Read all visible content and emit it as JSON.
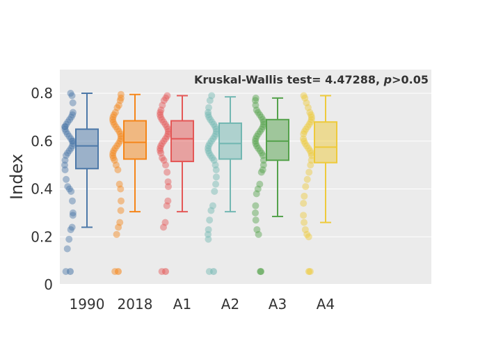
{
  "chart_data": {
    "type": "box",
    "title": "",
    "xlabel": "",
    "ylabel": "Index",
    "ylim": [
      0,
      0.9
    ],
    "yticks": [
      "0",
      "0.2",
      "0.4",
      "0.6",
      "0.8"
    ],
    "grid": true,
    "legend": "none",
    "annotation": {
      "prefix": "Kruskal-Wallis test= 4.47288, ",
      "p_symbol": "p",
      "suffix": ">0.05"
    },
    "categories": [
      "1990",
      "2018",
      "A1",
      "A2",
      "A3",
      "A4"
    ],
    "series": [
      {
        "color": "#4C78A8",
        "min": 0.24,
        "q1": 0.485,
        "median": 0.58,
        "q3": 0.65,
        "max": 0.8,
        "outliers": [
          0.055
        ],
        "points": [
          0.8,
          0.79,
          0.76,
          0.72,
          0.71,
          0.7,
          0.69,
          0.68,
          0.67,
          0.66,
          0.66,
          0.65,
          0.64,
          0.63,
          0.62,
          0.61,
          0.6,
          0.6,
          0.59,
          0.58,
          0.57,
          0.56,
          0.55,
          0.54,
          0.52,
          0.5,
          0.48,
          0.44,
          0.41,
          0.4,
          0.39,
          0.35,
          0.3,
          0.29,
          0.24,
          0.23,
          0.19,
          0.15,
          0.055
        ]
      },
      {
        "color": "#F58518",
        "min": 0.305,
        "q1": 0.525,
        "median": 0.595,
        "q3": 0.685,
        "max": 0.795,
        "outliers": [
          0.055
        ],
        "points": [
          0.795,
          0.78,
          0.77,
          0.75,
          0.74,
          0.72,
          0.71,
          0.7,
          0.69,
          0.68,
          0.67,
          0.66,
          0.65,
          0.64,
          0.63,
          0.62,
          0.61,
          0.6,
          0.59,
          0.58,
          0.57,
          0.56,
          0.55,
          0.54,
          0.53,
          0.52,
          0.5,
          0.48,
          0.42,
          0.4,
          0.35,
          0.31,
          0.26,
          0.24,
          0.21,
          0.055
        ]
      },
      {
        "color": "#E45756",
        "min": 0.305,
        "q1": 0.515,
        "median": 0.61,
        "q3": 0.685,
        "max": 0.79,
        "outliers": [
          0.055
        ],
        "points": [
          0.79,
          0.78,
          0.77,
          0.75,
          0.73,
          0.72,
          0.71,
          0.7,
          0.69,
          0.68,
          0.67,
          0.66,
          0.65,
          0.64,
          0.63,
          0.62,
          0.61,
          0.6,
          0.59,
          0.58,
          0.57,
          0.56,
          0.55,
          0.53,
          0.52,
          0.5,
          0.47,
          0.43,
          0.41,
          0.35,
          0.33,
          0.26,
          0.24,
          0.055
        ]
      },
      {
        "color": "#72B7B2",
        "min": 0.305,
        "q1": 0.525,
        "median": 0.59,
        "q3": 0.675,
        "max": 0.785,
        "outliers": [
          0.055
        ],
        "points": [
          0.79,
          0.77,
          0.74,
          0.72,
          0.71,
          0.7,
          0.69,
          0.68,
          0.67,
          0.66,
          0.65,
          0.64,
          0.63,
          0.62,
          0.61,
          0.6,
          0.59,
          0.58,
          0.57,
          0.56,
          0.55,
          0.54,
          0.53,
          0.52,
          0.5,
          0.48,
          0.45,
          0.42,
          0.39,
          0.33,
          0.31,
          0.27,
          0.23,
          0.21,
          0.19,
          0.055
        ]
      },
      {
        "color": "#54A24B",
        "min": 0.285,
        "q1": 0.52,
        "median": 0.6,
        "q3": 0.69,
        "max": 0.78,
        "outliers": [
          0.055
        ],
        "points": [
          0.78,
          0.77,
          0.75,
          0.73,
          0.72,
          0.71,
          0.7,
          0.69,
          0.68,
          0.67,
          0.66,
          0.65,
          0.64,
          0.63,
          0.62,
          0.61,
          0.6,
          0.59,
          0.58,
          0.57,
          0.56,
          0.55,
          0.54,
          0.52,
          0.5,
          0.48,
          0.47,
          0.42,
          0.4,
          0.38,
          0.33,
          0.3,
          0.27,
          0.23,
          0.21,
          0.055
        ]
      },
      {
        "color": "#EECA3B",
        "min": 0.26,
        "q1": 0.51,
        "median": 0.575,
        "q3": 0.68,
        "max": 0.79,
        "outliers": [
          0.055
        ],
        "points": [
          0.79,
          0.78,
          0.76,
          0.74,
          0.72,
          0.71,
          0.7,
          0.69,
          0.68,
          0.67,
          0.66,
          0.65,
          0.64,
          0.63,
          0.61,
          0.6,
          0.59,
          0.58,
          0.57,
          0.56,
          0.55,
          0.54,
          0.52,
          0.5,
          0.47,
          0.44,
          0.41,
          0.37,
          0.34,
          0.29,
          0.26,
          0.23,
          0.21,
          0.2,
          0.055
        ]
      }
    ]
  }
}
